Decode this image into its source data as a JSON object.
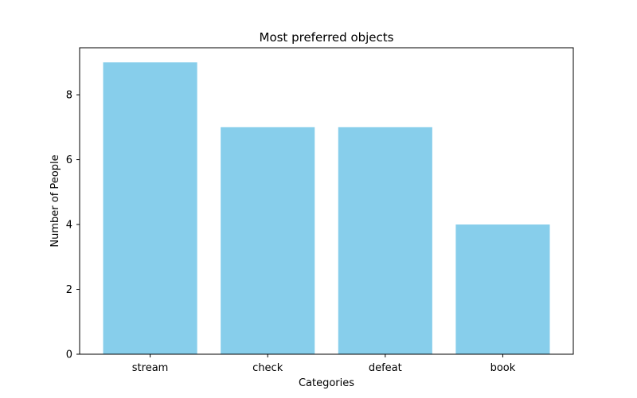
{
  "chart_data": {
    "type": "bar",
    "title": "Most preferred objects",
    "xlabel": "Categories",
    "ylabel": "Number of People",
    "categories": [
      "stream",
      "check",
      "defeat",
      "book"
    ],
    "values": [
      9,
      7,
      7,
      4
    ],
    "ylim": [
      0,
      9.45
    ],
    "yticks": [
      0,
      2,
      4,
      6,
      8
    ],
    "bar_color": "#87ceeb",
    "grid": false,
    "legend": "none"
  }
}
